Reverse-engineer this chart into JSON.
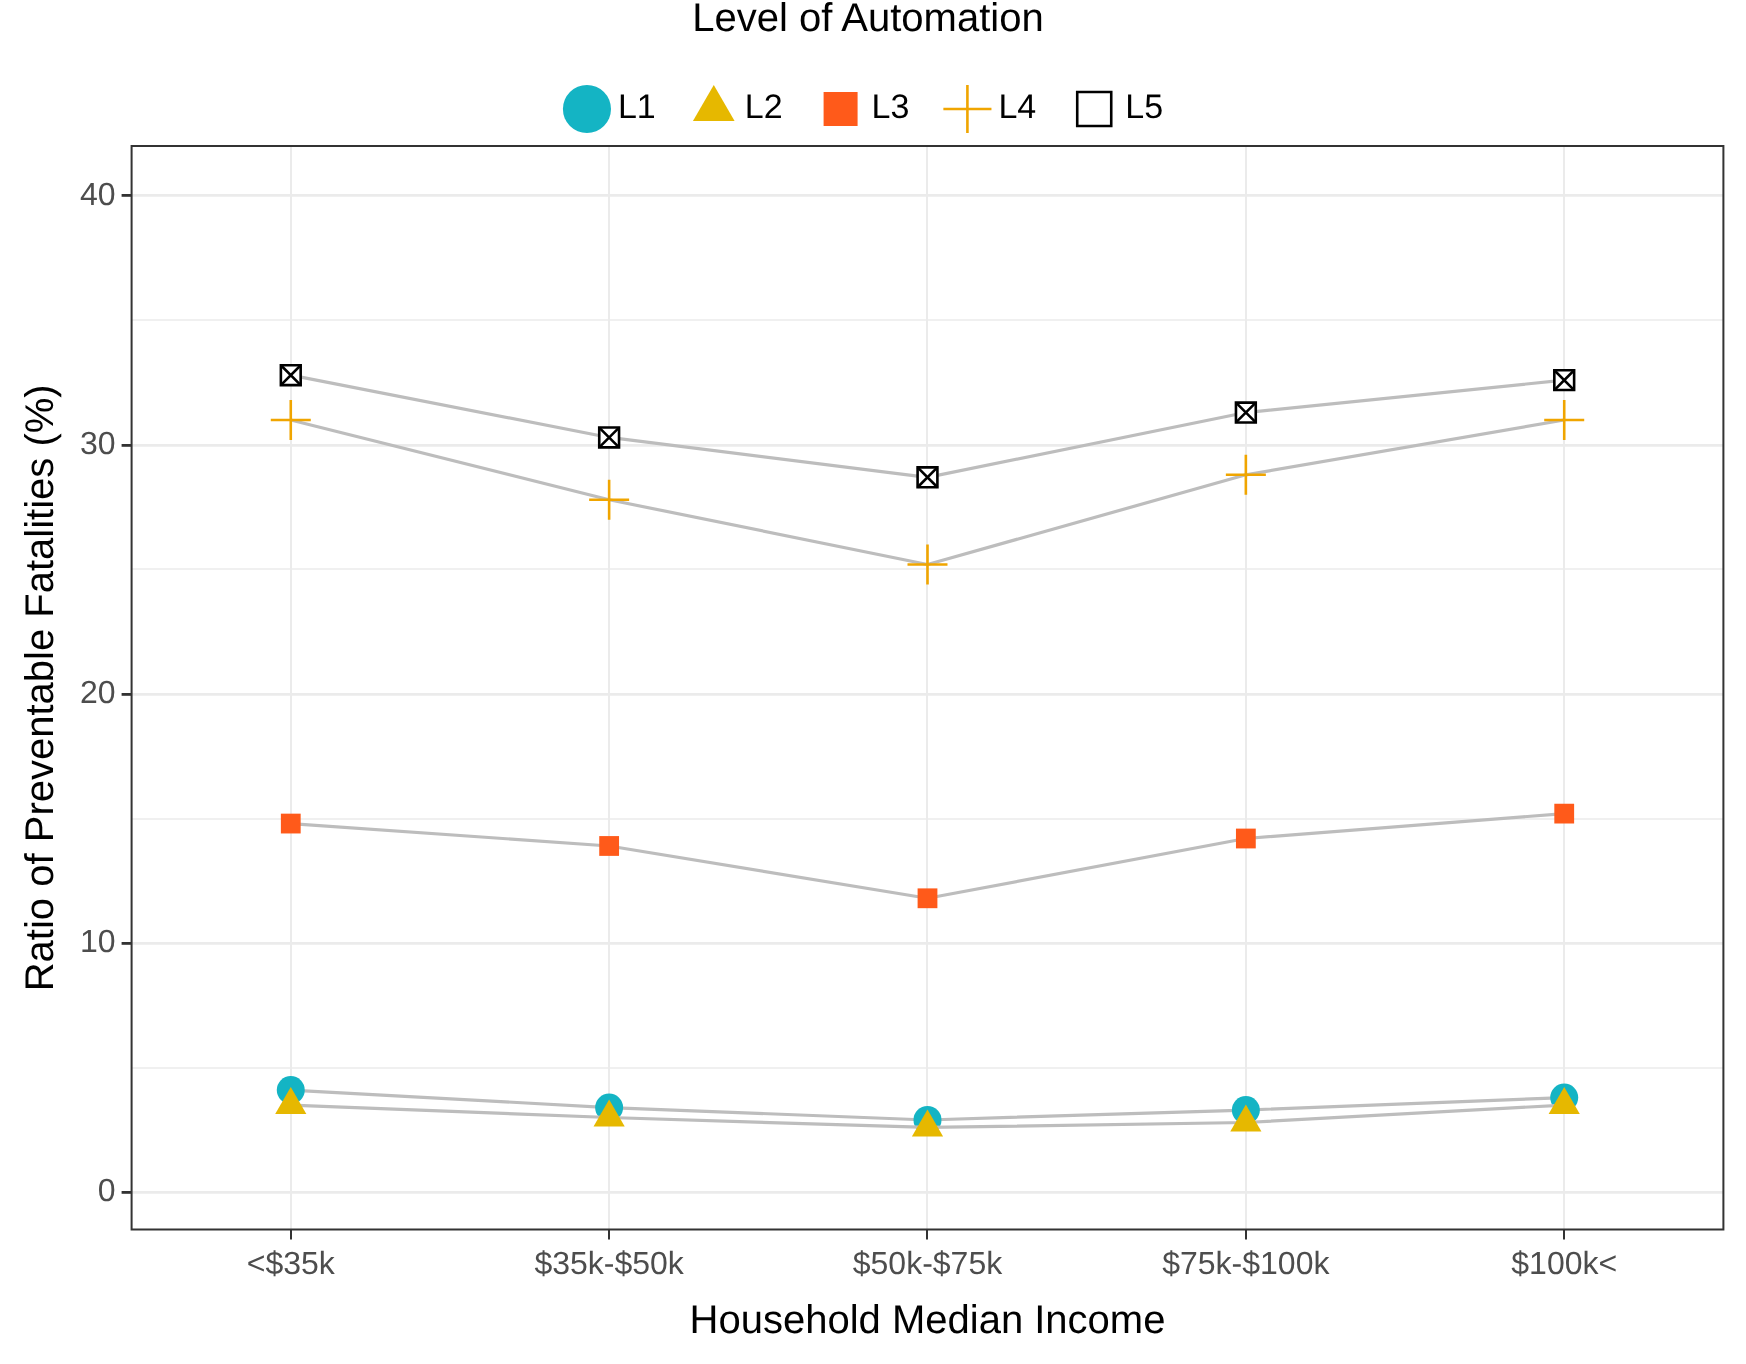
{
  "chart_data": {
    "type": "line",
    "xlabel": "Household Median Income",
    "ylabel": "Ratio of Preventable Fatalities (%)",
    "legend_title": "Level of Automation",
    "legend": "top",
    "categories": [
      "<$35k",
      "$35k-$50k",
      "$50k-$75k",
      "$75k-$100k",
      "$100k<"
    ],
    "ylim": [
      -1.5,
      42
    ],
    "yticks": [
      0,
      {
        "value": 5,
        "label": null
      },
      10,
      {
        "value": 15,
        "label": null
      },
      20,
      {
        "value": 25,
        "label": null
      },
      30,
      {
        "value": 35,
        "label": null
      },
      40
    ],
    "grid": true,
    "series": [
      {
        "name": "L1",
        "color": "#14b4c4",
        "marker": "circle",
        "values": [
          4.1,
          3.4,
          2.9,
          3.3,
          3.8
        ]
      },
      {
        "name": "L2",
        "color": "#e6b800",
        "marker": "triangle",
        "values": [
          3.5,
          3.0,
          2.6,
          2.8,
          3.5
        ]
      },
      {
        "name": "L3",
        "color": "#ff5a1a",
        "marker": "square",
        "values": [
          14.8,
          13.9,
          11.8,
          14.2,
          15.2
        ]
      },
      {
        "name": "L4",
        "color": "#f0a500",
        "marker": "cross",
        "values": [
          31.0,
          27.8,
          25.2,
          28.8,
          31.0
        ]
      },
      {
        "name": "L5",
        "color": "#000000",
        "marker": "square-x",
        "values": [
          32.8,
          30.3,
          28.7,
          31.3,
          32.6
        ]
      }
    ]
  }
}
